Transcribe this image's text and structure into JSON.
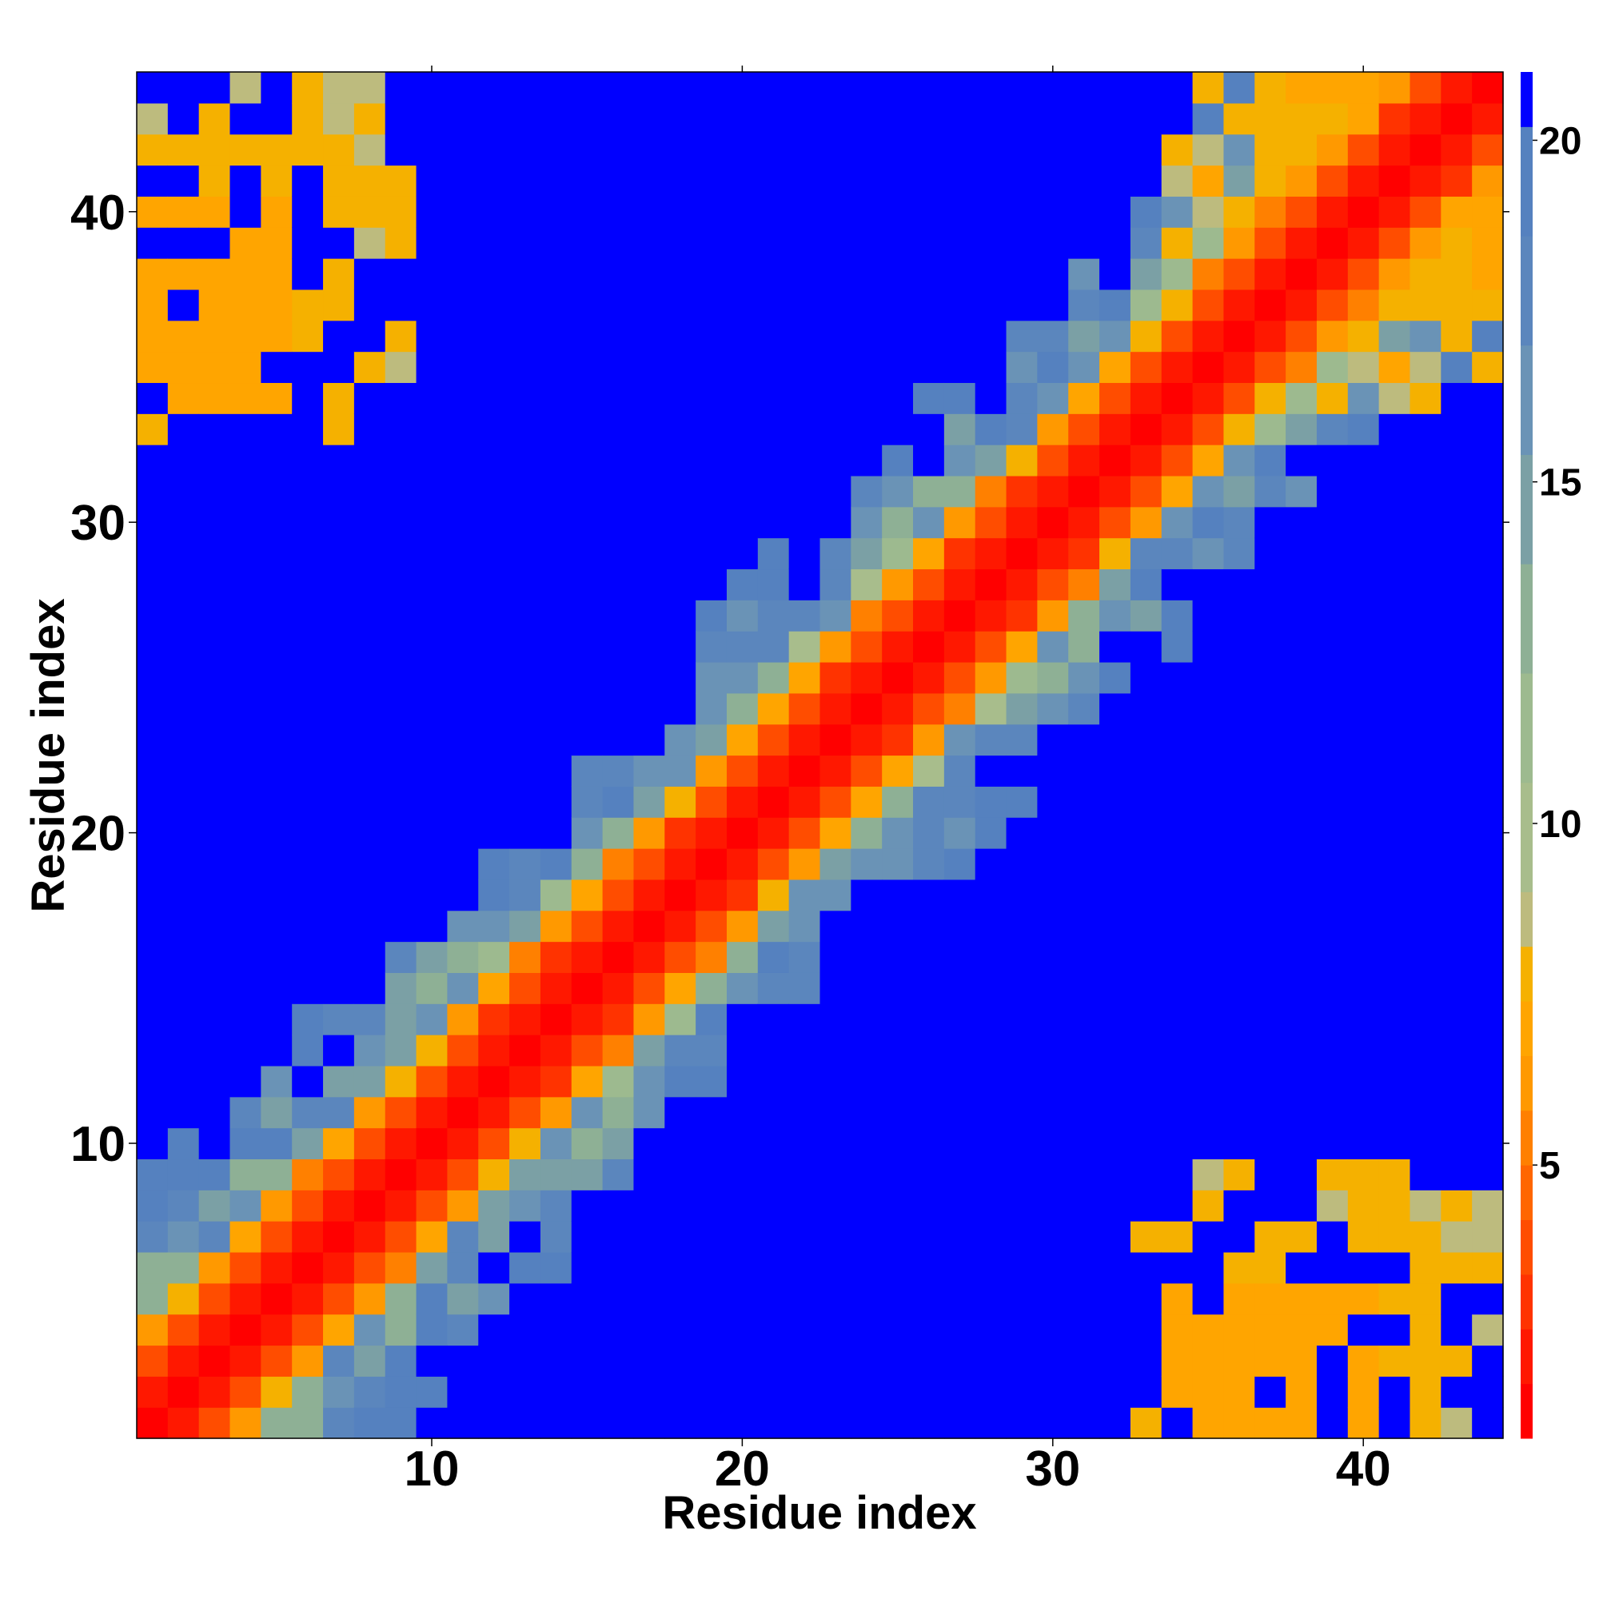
{
  "chart_data": {
    "type": "heatmap",
    "title": "",
    "xlabel": "Residue index",
    "ylabel": "Residue index",
    "xlim": [
      0.5,
      44.5
    ],
    "ylim": [
      0.5,
      44.5
    ],
    "xticks": [
      10,
      20,
      30,
      40
    ],
    "yticks": [
      10,
      20,
      30,
      40
    ],
    "grid": false,
    "n_residues": 44,
    "colorbar": {
      "range": [
        1,
        21
      ],
      "ticks": [
        5,
        10,
        15,
        20
      ],
      "position": "right",
      "levels": [
        {
          "max": 1.8,
          "color": "#ff0000"
        },
        {
          "max": 2.6,
          "color": "#ff1800"
        },
        {
          "max": 3.4,
          "color": "#ff3300"
        },
        {
          "max": 4.2,
          "color": "#ff4d00"
        },
        {
          "max": 5.0,
          "color": "#ff6600"
        },
        {
          "max": 5.8,
          "color": "#ff8000"
        },
        {
          "max": 6.6,
          "color": "#ff9900"
        },
        {
          "max": 7.4,
          "color": "#ffa500"
        },
        {
          "max": 8.2,
          "color": "#f5b100"
        },
        {
          "max": 9.0,
          "color": "#bdbb7e"
        },
        {
          "max": 10.6,
          "color": "#a8bd8c"
        },
        {
          "max": 12.2,
          "color": "#9dba8f"
        },
        {
          "max": 13.8,
          "color": "#8eb095"
        },
        {
          "max": 15.4,
          "color": "#7ba0a5"
        },
        {
          "max": 17.0,
          "color": "#6a93b6"
        },
        {
          "max": 18.6,
          "color": "#5b86bd"
        },
        {
          "max": 20.2,
          "color": "#5581bf"
        },
        {
          "max": 21.0,
          "color": "#0000ff"
        }
      ]
    },
    "description_of_values": "Pairwise residue distance matrix (symmetric); diagonal near 1, values increase with sequence separation, capped at ~21 (blue)."
  }
}
